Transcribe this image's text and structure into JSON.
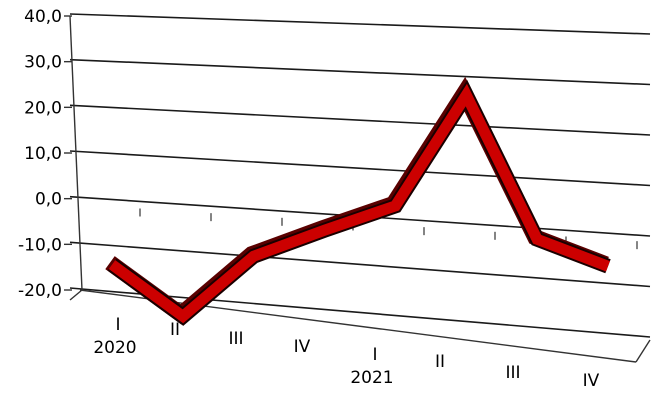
{
  "chart_data": {
    "type": "line",
    "title": "",
    "xlabel": "",
    "ylabel": "",
    "categories": [
      "I",
      "II",
      "III",
      "IV",
      "I",
      "II",
      "III",
      "IV"
    ],
    "years": [
      {
        "label": "2020",
        "category_index": 0
      },
      {
        "label": "2021",
        "category_index": 4
      }
    ],
    "series": [
      {
        "values": [
          -10.0,
          -20.0,
          -6.0,
          0.5,
          6.5,
          30.0,
          1.5,
          -3.0
        ]
      }
    ],
    "ylim": [
      -20.0,
      40.0
    ],
    "yticks": [
      "40,0",
      "30,0",
      "20,0",
      "10,0",
      "0,0",
      "-10,0",
      "-20,0"
    ],
    "grid": true,
    "legend": "none",
    "style": "3d",
    "colors": {
      "line": "#cc0000",
      "line_edge": "#5a0000",
      "grid": "#1a1a1a"
    }
  }
}
